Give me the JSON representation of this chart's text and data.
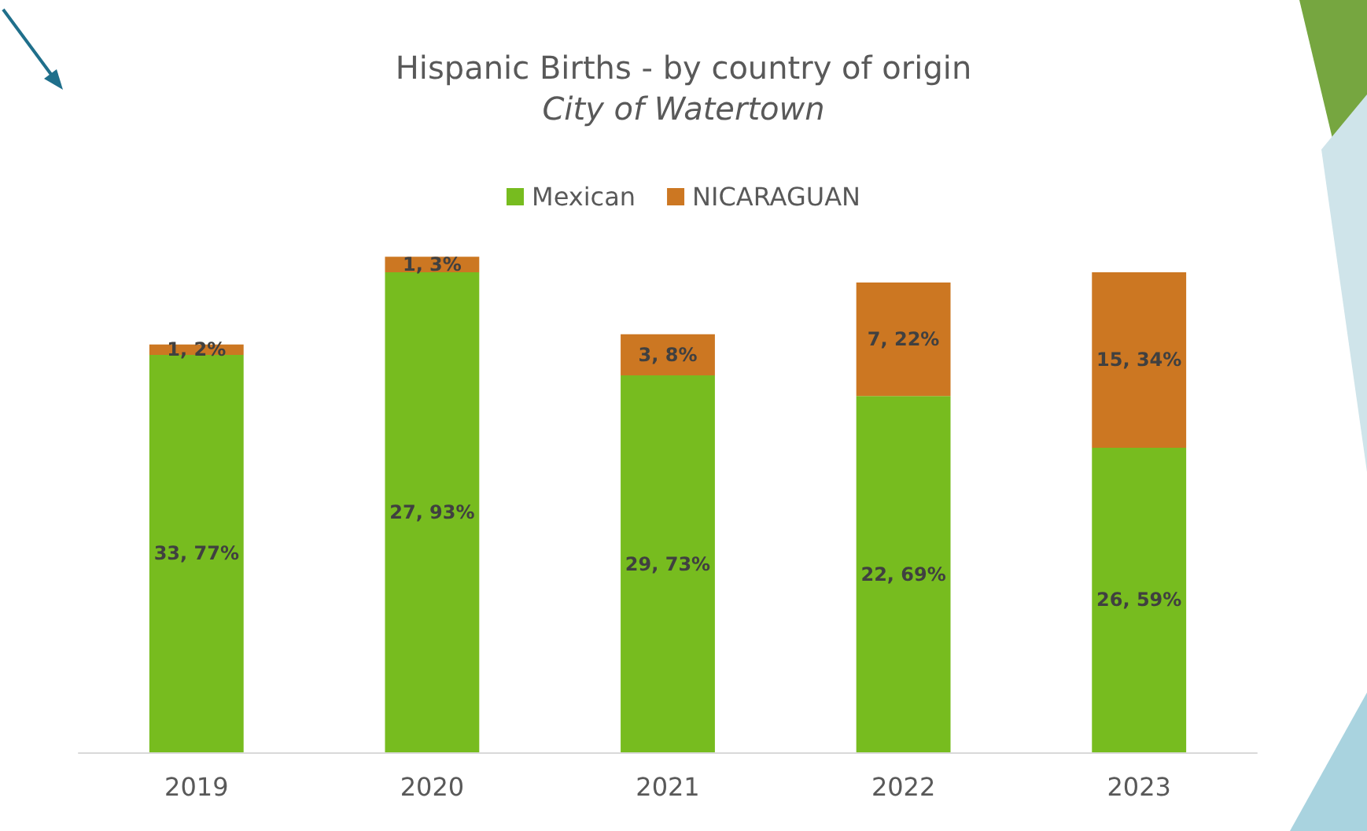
{
  "chart_data": {
    "type": "bar",
    "title": "Hispanic Births - by country of origin",
    "subtitle": "City of Watertown",
    "categories": [
      "2019",
      "2020",
      "2021",
      "2022",
      "2023"
    ],
    "stacked": true,
    "legend": "top",
    "series": [
      {
        "name": "Mexican",
        "color": "#77bc1f",
        "values": [
          77,
          93,
          73,
          69,
          59
        ],
        "value_labels": [
          "33, 77%",
          "27, 93%",
          "29, 73%",
          "22, 69%",
          "26, 59%"
        ]
      },
      {
        "name": "NICARAGUAN",
        "color": "#cc7722",
        "values": [
          2,
          3,
          8,
          22,
          34
        ],
        "value_labels": [
          "1, 2%",
          "1, 3%",
          "3, 8%",
          "7, 22%",
          "15, 34%"
        ]
      }
    ]
  }
}
